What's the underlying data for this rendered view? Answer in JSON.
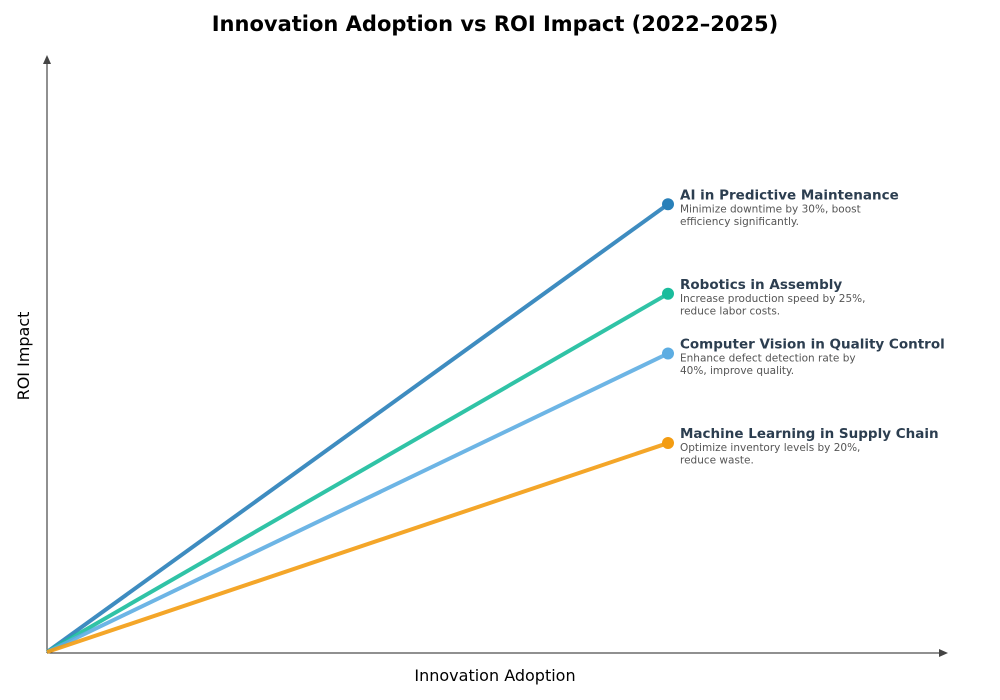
{
  "chart_data": {
    "type": "line",
    "title": "Innovation Adoption vs ROI Impact (2022–2025)",
    "xlabel": "Innovation Adoption",
    "ylabel": "ROI Impact",
    "xlim": [
      0,
      1
    ],
    "ylim": [
      0,
      1
    ],
    "grid": false,
    "series": [
      {
        "name": "AI in Predictive Maintenance",
        "description": [
          "Minimize downtime by 30%, boost",
          "efficiency significantly."
        ],
        "color": "#2980b9",
        "x": [
          0,
          0.69
        ],
        "y": [
          0,
          0.75
        ]
      },
      {
        "name": "Robotics in Assembly",
        "description": [
          "Increase production speed by 25%,",
          "reduce labor costs."
        ],
        "color": "#1abc9c",
        "x": [
          0,
          0.69
        ],
        "y": [
          0,
          0.6
        ]
      },
      {
        "name": "Computer Vision in Quality Control",
        "description": [
          "Enhance defect detection rate by",
          "40%, improve quality."
        ],
        "color": "#5dade2",
        "x": [
          0,
          0.69
        ],
        "y": [
          0,
          0.5
        ]
      },
      {
        "name": "Machine Learning in Supply Chain",
        "description": [
          "Optimize inventory levels by 20%,",
          "reduce waste."
        ],
        "color": "#f39c12",
        "x": [
          0,
          0.69
        ],
        "y": [
          0,
          0.35
        ]
      }
    ]
  }
}
